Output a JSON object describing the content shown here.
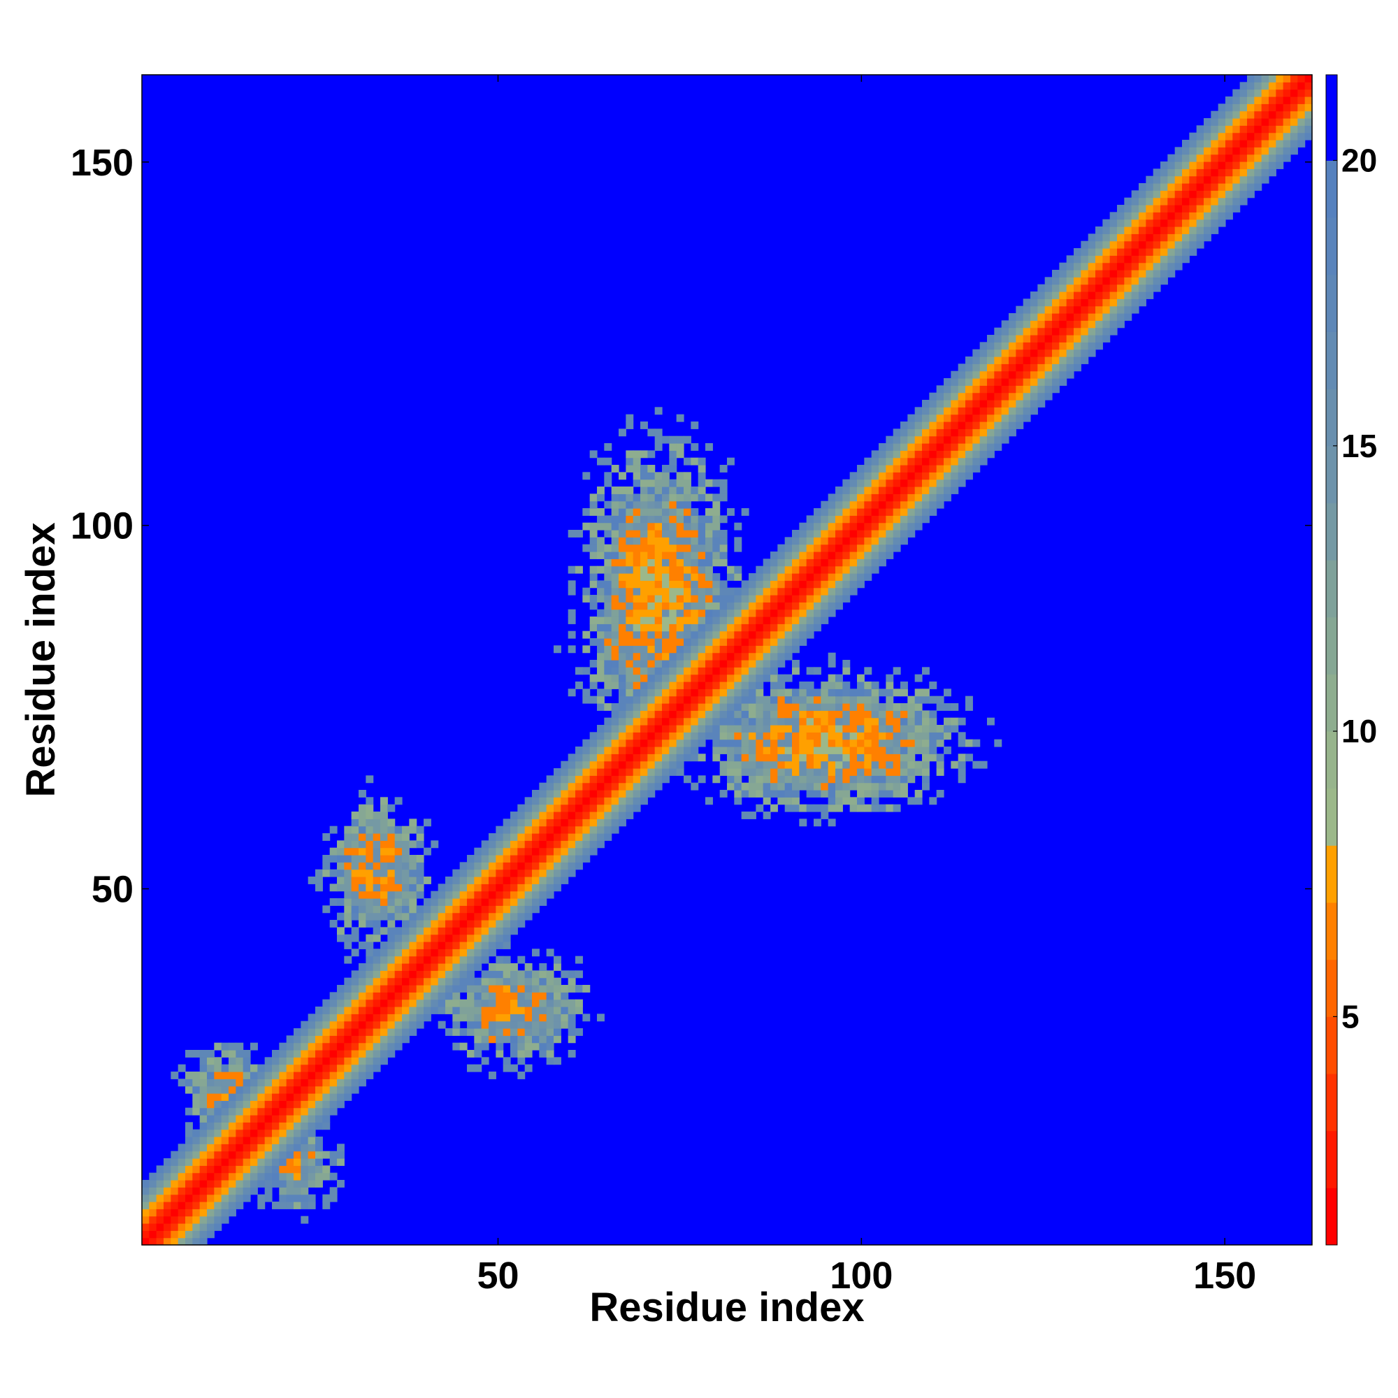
{
  "chart_data": {
    "type": "heatmap",
    "title": "",
    "xlabel": "Residue index",
    "ylabel": "Residue index",
    "xlim": [
      1,
      162
    ],
    "ylim": [
      1,
      162
    ],
    "x_ticks": [
      50,
      100,
      150
    ],
    "y_ticks": [
      50,
      100,
      150
    ],
    "matrix_size": 162,
    "colorbar": {
      "range": [
        1,
        21.5
      ],
      "ticks": [
        5,
        10,
        15,
        20
      ],
      "levels": [
        {
          "max": 2,
          "color": "#ff0000"
        },
        {
          "max": 3,
          "color": "#ff1a00"
        },
        {
          "max": 4,
          "color": "#ff3300"
        },
        {
          "max": 5,
          "color": "#ff4d00"
        },
        {
          "max": 6,
          "color": "#ff6600"
        },
        {
          "max": 7,
          "color": "#ff8000"
        },
        {
          "max": 8,
          "color": "#ffa000"
        },
        {
          "max": 9,
          "color": "#9cb88a"
        },
        {
          "max": 10,
          "color": "#97b48c"
        },
        {
          "max": 11,
          "color": "#8ead8f"
        },
        {
          "max": 12,
          "color": "#86a794"
        },
        {
          "max": 13,
          "color": "#7fa19a"
        },
        {
          "max": 14,
          "color": "#7599a4"
        },
        {
          "max": 15,
          "color": "#6e93ab"
        },
        {
          "max": 16,
          "color": "#698fae"
        },
        {
          "max": 17,
          "color": "#638bb3"
        },
        {
          "max": 18,
          "color": "#5e87b7"
        },
        {
          "max": 19,
          "color": "#5a84bb"
        },
        {
          "max": 20,
          "color": "#5681be"
        },
        {
          "max": 21.5,
          "color": "#0000ff"
        }
      ]
    },
    "diagonal_band": {
      "half_width": 8,
      "red_width": 2.5,
      "orange_width": 4.0
    },
    "contact_regions": [
      {
        "center_i": 72,
        "center_j": 90,
        "spread_i": 10,
        "spread_j": 20,
        "intensity": 1.0
      },
      {
        "center_i": 95,
        "center_j": 70,
        "spread_i": 18,
        "spread_j": 9,
        "intensity": 1.0
      },
      {
        "center_i": 33,
        "center_j": 52,
        "spread_i": 7,
        "spread_j": 10,
        "intensity": 0.9
      },
      {
        "center_i": 52,
        "center_j": 33,
        "spread_i": 10,
        "spread_j": 7,
        "intensity": 0.9
      },
      {
        "center_i": 12,
        "center_j": 22,
        "spread_i": 6,
        "spread_j": 6,
        "intensity": 0.8
      },
      {
        "center_i": 22,
        "center_j": 12,
        "spread_i": 6,
        "spread_j": 6,
        "intensity": 0.8
      }
    ]
  }
}
